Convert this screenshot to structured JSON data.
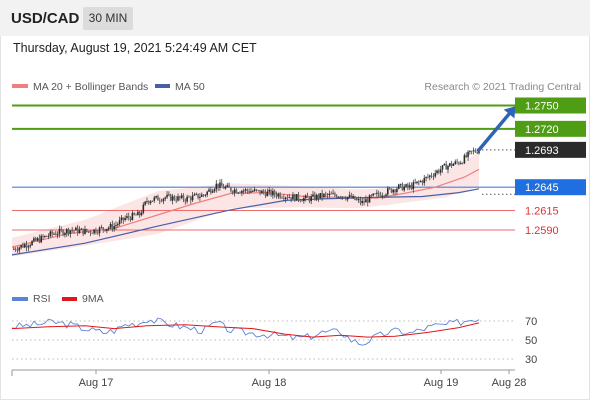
{
  "header": {
    "symbol": "USD/CAD",
    "timeframe": "30 MIN",
    "datetime": "Thursday, August 19, 2021 5:24:49 AM CET"
  },
  "legend": {
    "ma20_label": "MA 20 + Bollinger Bands",
    "ma50_label": "MA 50",
    "copyright": "Research © 2021 Trading Central"
  },
  "colors": {
    "resistance": "#4f9d14",
    "support": "#ef6b6b",
    "pivot": "#4a7fd9",
    "current": "#2b2b2b",
    "ma20": "#f08080",
    "ma50": "#4a5fa8",
    "bollinger_fill": "#fbe1e1",
    "arrow": "#2f63b4",
    "rsi": "#5b84d6",
    "rsi_ma": "#e01818"
  },
  "chart_data": [
    {
      "type": "candlestick",
      "title": "USD/CAD 30 MIN",
      "x_tick_labels": [
        "Aug 17",
        "Aug 18",
        "Aug 19",
        "Aug 28"
      ],
      "ylim": [
        1.2555,
        1.2765
      ],
      "levels": [
        {
          "value": 1.275,
          "label": "1.2750",
          "kind": "resistance"
        },
        {
          "value": 1.272,
          "label": "1.2720",
          "kind": "resistance"
        },
        {
          "value": 1.2693,
          "label": "1.2693",
          "kind": "current"
        },
        {
          "value": 1.2645,
          "label": "1.2645",
          "kind": "pivot"
        },
        {
          "value": 1.2615,
          "label": "1.2615",
          "kind": "support"
        },
        {
          "value": 1.259,
          "label": "1.2590",
          "kind": "support"
        }
      ],
      "price_path": [
        [
          0,
          1.2565
        ],
        [
          12,
          1.2575
        ],
        [
          22,
          1.2585
        ],
        [
          32,
          1.259
        ],
        [
          42,
          1.2588
        ],
        [
          50,
          1.2592
        ],
        [
          56,
          1.2595
        ],
        [
          62,
          1.2605
        ],
        [
          70,
          1.261
        ],
        [
          74,
          1.2628
        ],
        [
          84,
          1.2632
        ],
        [
          95,
          1.263
        ],
        [
          105,
          1.2635
        ],
        [
          112,
          1.2648
        ],
        [
          120,
          1.2642
        ],
        [
          132,
          1.264
        ],
        [
          145,
          1.2636
        ],
        [
          155,
          1.2632
        ],
        [
          162,
          1.263
        ],
        [
          170,
          1.2634
        ],
        [
          180,
          1.2635
        ],
        [
          186,
          1.2631
        ],
        [
          192,
          1.2625
        ],
        [
          198,
          1.2633
        ],
        [
          206,
          1.264
        ],
        [
          212,
          1.2645
        ],
        [
          218,
          1.2645
        ],
        [
          226,
          1.2655
        ],
        [
          232,
          1.2664
        ],
        [
          238,
          1.2672
        ],
        [
          246,
          1.2678
        ],
        [
          252,
          1.269
        ],
        [
          256,
          1.2693
        ]
      ],
      "ma20_path": [
        [
          0,
          1.2568
        ],
        [
          30,
          1.2585
        ],
        [
          56,
          1.2592
        ],
        [
          78,
          1.2608
        ],
        [
          100,
          1.2624
        ],
        [
          120,
          1.2637
        ],
        [
          140,
          1.2638
        ],
        [
          160,
          1.2633
        ],
        [
          180,
          1.2632
        ],
        [
          200,
          1.2631
        ],
        [
          215,
          1.2637
        ],
        [
          232,
          1.2645
        ],
        [
          248,
          1.2658
        ],
        [
          256,
          1.2668
        ]
      ],
      "ma50_path": [
        [
          0,
          1.2558
        ],
        [
          40,
          1.2573
        ],
        [
          80,
          1.2595
        ],
        [
          120,
          1.2616
        ],
        [
          150,
          1.2628
        ],
        [
          170,
          1.263
        ],
        [
          200,
          1.2632
        ],
        [
          225,
          1.2633
        ],
        [
          245,
          1.2638
        ],
        [
          256,
          1.2643
        ]
      ],
      "bollinger_band": {
        "upper": [
          [
            0,
            1.258
          ],
          [
            40,
            1.2603
          ],
          [
            80,
            1.264
          ],
          [
            120,
            1.265
          ],
          [
            160,
            1.2646
          ],
          [
            190,
            1.2642
          ],
          [
            215,
            1.2645
          ],
          [
            238,
            1.2666
          ],
          [
            256,
            1.269
          ]
        ],
        "lower": [
          [
            0,
            1.2556
          ],
          [
            40,
            1.257
          ],
          [
            80,
            1.2585
          ],
          [
            120,
            1.2618
          ],
          [
            160,
            1.2619
          ],
          [
            190,
            1.2618
          ],
          [
            215,
            1.2625
          ],
          [
            238,
            1.2632
          ],
          [
            256,
            1.2646
          ]
        ]
      },
      "projection": {
        "from": [
          256,
          1.2693
        ],
        "to": [
          276,
          1.2749
        ]
      }
    },
    {
      "type": "line",
      "legend": [
        "RSI",
        "9MA"
      ],
      "ylim": [
        20,
        80
      ],
      "y_ticks": [
        70,
        50,
        30
      ],
      "rsi": [
        [
          0,
          64
        ],
        [
          12,
          66
        ],
        [
          22,
          69
        ],
        [
          32,
          66
        ],
        [
          42,
          61
        ],
        [
          50,
          58
        ],
        [
          56,
          60
        ],
        [
          62,
          66
        ],
        [
          70,
          68
        ],
        [
          74,
          72
        ],
        [
          84,
          68
        ],
        [
          95,
          63
        ],
        [
          105,
          60
        ],
        [
          112,
          68
        ],
        [
          120,
          60
        ],
        [
          132,
          57
        ],
        [
          145,
          55
        ],
        [
          155,
          52
        ],
        [
          162,
          53
        ],
        [
          170,
          58
        ],
        [
          180,
          59
        ],
        [
          186,
          50
        ],
        [
          192,
          46
        ],
        [
          198,
          52
        ],
        [
          206,
          58
        ],
        [
          212,
          60
        ],
        [
          218,
          57
        ],
        [
          226,
          62
        ],
        [
          232,
          65
        ],
        [
          238,
          66
        ],
        [
          246,
          69
        ],
        [
          252,
          72
        ],
        [
          256,
          73
        ]
      ],
      "rsi_ma": [
        [
          0,
          62
        ],
        [
          20,
          64
        ],
        [
          40,
          65
        ],
        [
          56,
          62
        ],
        [
          74,
          65
        ],
        [
          95,
          66
        ],
        [
          112,
          64
        ],
        [
          132,
          62
        ],
        [
          150,
          56
        ],
        [
          165,
          53
        ],
        [
          180,
          55
        ],
        [
          195,
          53
        ],
        [
          210,
          54
        ],
        [
          228,
          58
        ],
        [
          245,
          63
        ],
        [
          256,
          68
        ]
      ]
    }
  ]
}
